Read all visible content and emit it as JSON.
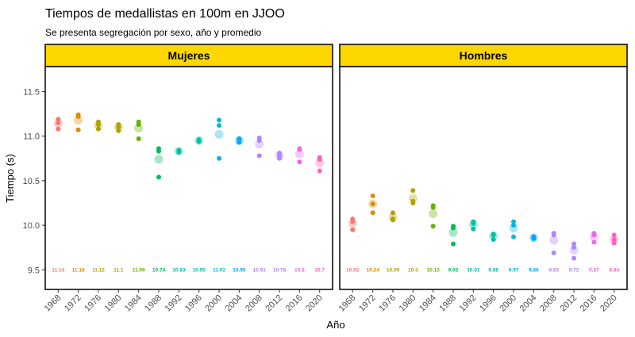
{
  "chart_data": {
    "type": "scatter",
    "title": "Tiempos de medallistas en 100m en JJOO",
    "subtitle": "Se presenta segregación por sexo, año y promedio",
    "xlabel": "Año",
    "ylabel": "Tiempo (s)",
    "ylim": [
      9.28,
      11.78
    ],
    "yticks": [
      "9.5",
      "10.0",
      "10.5",
      "11.0",
      "11.5"
    ],
    "legend": "none",
    "years": [
      "1968",
      "1972",
      "1976",
      "1980",
      "1984",
      "1988",
      "1992",
      "1996",
      "2000",
      "2004",
      "2008",
      "2012",
      "2016",
      "2020"
    ],
    "colors": [
      "#F8766D",
      "#DB8E00",
      "#AEA200",
      "#64B200",
      "#00BD5C",
      "#00C1A7",
      "#00BADE",
      "#00A6FF",
      "#B385FF",
      "#EF67EB",
      "#FF63B6"
    ],
    "panels": [
      {
        "name": "Mujeres",
        "points": [
          [
            11.19,
            11.15,
            11.08
          ],
          [
            11.24,
            11.22,
            11.07
          ],
          [
            11.16,
            11.13,
            11.08
          ],
          [
            11.13,
            11.1,
            11.06
          ],
          [
            11.16,
            11.13,
            10.97
          ],
          [
            10.86,
            10.83,
            10.54
          ],
          [
            10.84,
            10.83,
            10.82
          ],
          [
            10.96,
            10.94,
            10.94
          ],
          [
            11.18,
            11.12,
            10.75
          ],
          [
            10.97,
            10.96,
            10.93
          ],
          [
            10.98,
            10.95,
            10.78
          ],
          [
            10.81,
            10.78,
            10.75
          ],
          [
            10.86,
            10.85,
            10.71
          ],
          [
            10.76,
            10.74,
            10.61
          ]
        ],
        "averages": [
          11.14,
          11.18,
          11.12,
          11.1,
          11.09,
          10.74,
          10.83,
          10.95,
          11.02,
          10.95,
          10.91,
          10.78,
          10.8,
          10.7
        ],
        "avg_labels": [
          "11.14",
          "11.18",
          "11.12",
          "11.1",
          "11.09",
          "10.74",
          "10.83",
          "10.95",
          "11.02",
          "10.95",
          "10.91",
          "10.78",
          "10.8",
          "10.7"
        ]
      },
      {
        "name": "Hombres",
        "points": [
          [
            10.07,
            10.04,
            9.95
          ],
          [
            10.33,
            10.24,
            10.14
          ],
          [
            10.14,
            10.07,
            10.06
          ],
          [
            10.39,
            10.27,
            10.25
          ],
          [
            10.22,
            10.2,
            9.99
          ],
          [
            9.99,
            9.97,
            9.79
          ],
          [
            10.04,
            10.02,
            9.96
          ],
          [
            9.9,
            9.89,
            9.84
          ],
          [
            10.04,
            10.0,
            9.87
          ],
          [
            9.87,
            9.86,
            9.85
          ],
          [
            9.91,
            9.89,
            9.69
          ],
          [
            9.79,
            9.75,
            9.63
          ],
          [
            9.91,
            9.89,
            9.81
          ],
          [
            9.89,
            9.84,
            9.8
          ]
        ],
        "averages": [
          10.02,
          10.24,
          10.09,
          10.3,
          10.13,
          9.92,
          10.01,
          9.88,
          9.97,
          9.86,
          9.83,
          9.72,
          9.87,
          9.84
        ],
        "avg_labels": [
          "10.02",
          "10.24",
          "10.09",
          "10.3",
          "10.13",
          "9.92",
          "10.01",
          "9.88",
          "9.97",
          "9.86",
          "9.83",
          "9.72",
          "9.87",
          "9.84"
        ]
      }
    ]
  }
}
